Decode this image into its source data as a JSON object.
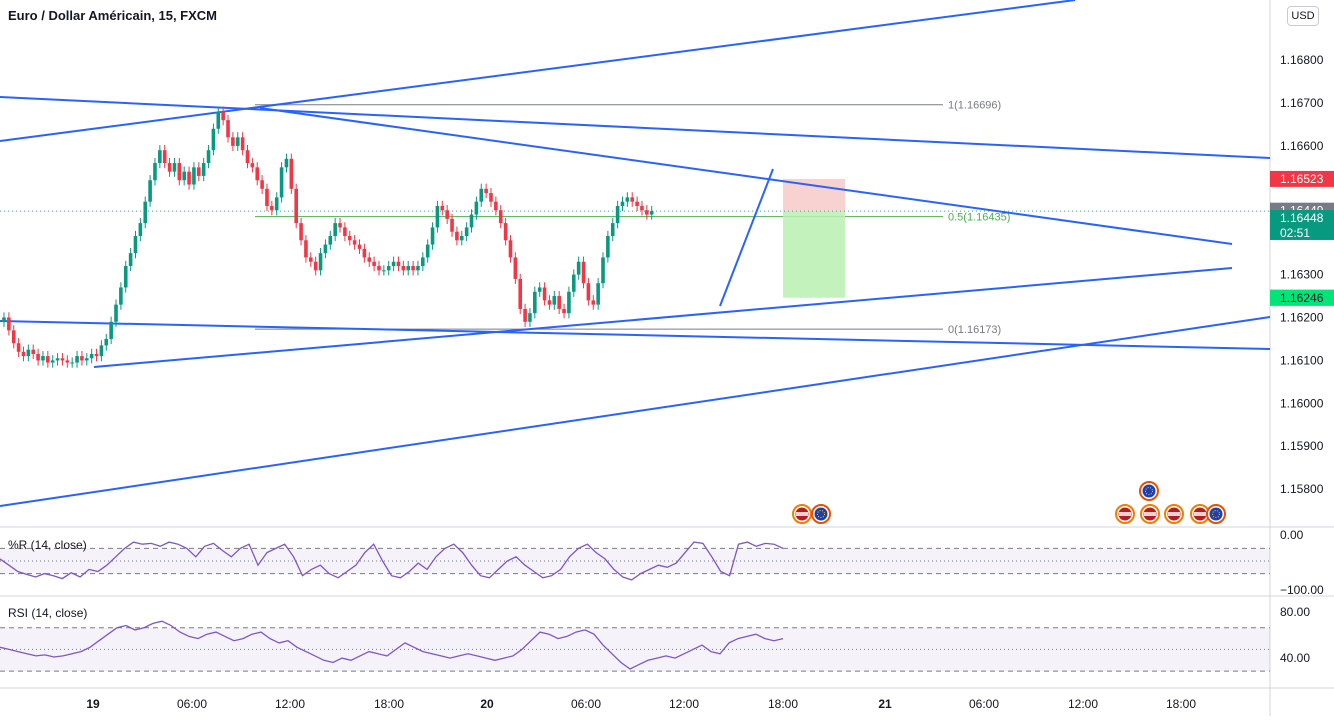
{
  "chart_data": {
    "type": "candlestick",
    "title": "Euro / Dollar Américain, 15, FXCM",
    "currency": "USD",
    "price_axis": {
      "range": [
        1.1575,
        1.1695
      ],
      "ticks": [
        "1.16800",
        "1.16700",
        "1.16600",
        "1.16300",
        "1.16200",
        "1.16100",
        "1.16000",
        "1.15900",
        "1.15800"
      ]
    },
    "time_axis": {
      "labels": [
        "19",
        "06:00",
        "12:00",
        "18:00",
        "20",
        "06:00",
        "12:00",
        "18:00",
        "21",
        "06:00",
        "12:00",
        "18:00"
      ]
    },
    "price_labels": {
      "target": "1.16523",
      "entry": "1.16449",
      "current": "1.16448",
      "countdown": "02:51",
      "stop": "1.16246"
    },
    "fib_levels": [
      {
        "label": "1(1.16696)",
        "price": 1.16696
      },
      {
        "label": "0.5(1.16435)",
        "price": 1.16435
      },
      {
        "label": "0(1.16173)",
        "price": 1.16173
      }
    ],
    "candles_close": [
      1.162,
      1.1617,
      1.1614,
      1.1612,
      1.1611,
      1.16125,
      1.16115,
      1.161,
      1.1611,
      1.16095,
      1.161,
      1.16105,
      1.161,
      1.16095,
      1.16095,
      1.1611,
      1.161,
      1.16105,
      1.16115,
      1.1611,
      1.16135,
      1.1615,
      1.1619,
      1.1623,
      1.1627,
      1.1632,
      1.1635,
      1.1639,
      1.1642,
      1.1647,
      1.1652,
      1.1656,
      1.1659,
      1.1656,
      1.1654,
      1.1656,
      1.1652,
      1.1654,
      1.1651,
      1.1655,
      1.1653,
      1.1656,
      1.1659,
      1.1664,
      1.1668,
      1.1666,
      1.1662,
      1.166,
      1.1662,
      1.1659,
      1.1656,
      1.1655,
      1.1652,
      1.165,
      1.1646,
      1.1645,
      1.1648,
      1.1655,
      1.1657,
      1.165,
      1.1642,
      1.1638,
      1.1634,
      1.1633,
      1.1631,
      1.1635,
      1.1637,
      1.1639,
      1.1642,
      1.1641,
      1.1639,
      1.1638,
      1.1637,
      1.1636,
      1.1634,
      1.1633,
      1.1632,
      1.1631,
      1.1631,
      1.1632,
      1.1633,
      1.1632,
      1.1631,
      1.1632,
      1.1631,
      1.1632,
      1.1634,
      1.1637,
      1.1641,
      1.1646,
      1.1645,
      1.1643,
      1.164,
      1.1638,
      1.1639,
      1.1641,
      1.1644,
      1.1647,
      1.165,
      1.1649,
      1.1647,
      1.1645,
      1.1642,
      1.1638,
      1.1634,
      1.1629,
      1.1622,
      1.1619,
      1.1621,
      1.1626,
      1.1627,
      1.1624,
      1.1623,
      1.1625,
      1.1622,
      1.1621,
      1.1626,
      1.163,
      1.1633,
      1.1628,
      1.1624,
      1.1623,
      1.1628,
      1.1634,
      1.1639,
      1.1642,
      1.1646,
      1.1647,
      1.1648,
      1.1647,
      1.1646,
      1.1645,
      1.1644,
      1.16448
    ],
    "williams_r": {
      "label": "%R (14, close)",
      "ticks": [
        "0.00",
        "−100.00"
      ],
      "levels": [
        -20,
        -50,
        -80
      ],
      "values": [
        -45,
        -60,
        -75,
        -82,
        -88,
        -80,
        -85,
        -92,
        -78,
        -88,
        -70,
        -75,
        -60,
        -40,
        -20,
        -5,
        -10,
        -8,
        -15,
        -5,
        -10,
        -20,
        -40,
        -15,
        -8,
        -25,
        -40,
        -20,
        -10,
        -60,
        -30,
        -20,
        -10,
        -40,
        -85,
        -70,
        -60,
        -80,
        -90,
        -75,
        -60,
        -30,
        -10,
        -50,
        -85,
        -90,
        -75,
        -55,
        -70,
        -40,
        -20,
        -10,
        -30,
        -60,
        -85,
        -90,
        -70,
        -50,
        -40,
        -60,
        -75,
        -90,
        -85,
        -70,
        -40,
        -20,
        -10,
        -30,
        -45,
        -70,
        -88,
        -95,
        -80,
        -70,
        -60,
        -65,
        -55,
        -30,
        -5,
        -8,
        -40,
        -75,
        -85,
        -10,
        -5,
        -15,
        -8,
        -10,
        -20
      ]
    },
    "rsi": {
      "label": "RSI (14, close)",
      "ticks": [
        "80.00",
        "40.00"
      ],
      "levels": [
        70,
        50,
        30
      ],
      "values": [
        52,
        50,
        48,
        46,
        44,
        45,
        43,
        44,
        46,
        48,
        52,
        58,
        64,
        70,
        72,
        68,
        70,
        74,
        76,
        72,
        66,
        62,
        60,
        64,
        66,
        62,
        58,
        60,
        64,
        66,
        60,
        56,
        58,
        52,
        48,
        44,
        40,
        38,
        42,
        40,
        44,
        48,
        46,
        44,
        50,
        56,
        52,
        48,
        46,
        44,
        42,
        44,
        46,
        44,
        42,
        40,
        42,
        44,
        50,
        58,
        66,
        64,
        60,
        62,
        66,
        68,
        64,
        54,
        46,
        38,
        32,
        36,
        40,
        42,
        44,
        42,
        46,
        50,
        54,
        48,
        46,
        56,
        60,
        62,
        64,
        60,
        58,
        60
      ]
    }
  }
}
